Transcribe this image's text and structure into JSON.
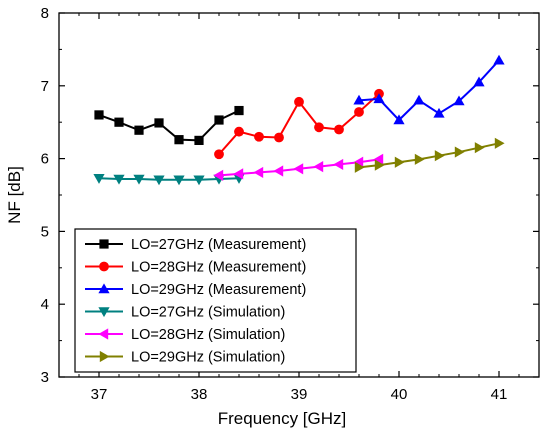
{
  "chart_data": {
    "type": "line",
    "title": "",
    "xlabel": "Frequency [GHz]",
    "ylabel": "NF [dB]",
    "xlim": [
      36.6,
      41.4
    ],
    "ylim": [
      3,
      8
    ],
    "xticks": [
      37,
      38,
      39,
      40,
      41
    ],
    "yticks": [
      3,
      4,
      5,
      6,
      7,
      8
    ],
    "grid": false,
    "legend_position": "bottom-left",
    "series": [
      {
        "name": "LO=27GHz (Measurement)",
        "color": "#000000",
        "marker": "square",
        "x": [
          37.0,
          37.2,
          37.4,
          37.6,
          37.8,
          38.0,
          38.2,
          38.4
        ],
        "y": [
          6.6,
          6.5,
          6.39,
          6.49,
          6.26,
          6.25,
          6.53,
          6.66
        ]
      },
      {
        "name": "LO=28GHz (Measurement)",
        "color": "#ff0000",
        "marker": "circle",
        "x": [
          38.2,
          38.4,
          38.6,
          38.8,
          39.0,
          39.2,
          39.4,
          39.6,
          39.8
        ],
        "y": [
          6.06,
          6.37,
          6.3,
          6.29,
          6.78,
          6.43,
          6.4,
          6.64,
          6.89
        ]
      },
      {
        "name": "LO=29GHz (Measurement)",
        "color": "#0000ff",
        "marker": "triangle-up",
        "x": [
          39.6,
          39.8,
          40.0,
          40.2,
          40.4,
          40.6,
          40.8,
          41.0
        ],
        "y": [
          6.8,
          6.82,
          6.53,
          6.8,
          6.62,
          6.79,
          7.05,
          7.35
        ]
      },
      {
        "name": "LO=27GHz (Simulation)",
        "color": "#008080",
        "marker": "triangle-down",
        "x": [
          37.0,
          37.2,
          37.4,
          37.6,
          37.8,
          38.0,
          38.2,
          38.4
        ],
        "y": [
          5.73,
          5.72,
          5.72,
          5.71,
          5.71,
          5.71,
          5.72,
          5.73
        ]
      },
      {
        "name": "LO=28GHz (Simulation)",
        "color": "#ff00ff",
        "marker": "triangle-left",
        "x": [
          38.2,
          38.4,
          38.6,
          38.8,
          39.0,
          39.2,
          39.4,
          39.6,
          39.8
        ],
        "y": [
          5.77,
          5.79,
          5.81,
          5.83,
          5.86,
          5.89,
          5.92,
          5.95,
          5.99
        ]
      },
      {
        "name": "LO=29GHz (Simulation)",
        "color": "#808000",
        "marker": "triangle-right",
        "x": [
          39.6,
          39.8,
          40.0,
          40.2,
          40.4,
          40.6,
          40.8,
          41.0
        ],
        "y": [
          5.88,
          5.91,
          5.95,
          5.99,
          6.04,
          6.09,
          6.15,
          6.21
        ]
      }
    ]
  }
}
